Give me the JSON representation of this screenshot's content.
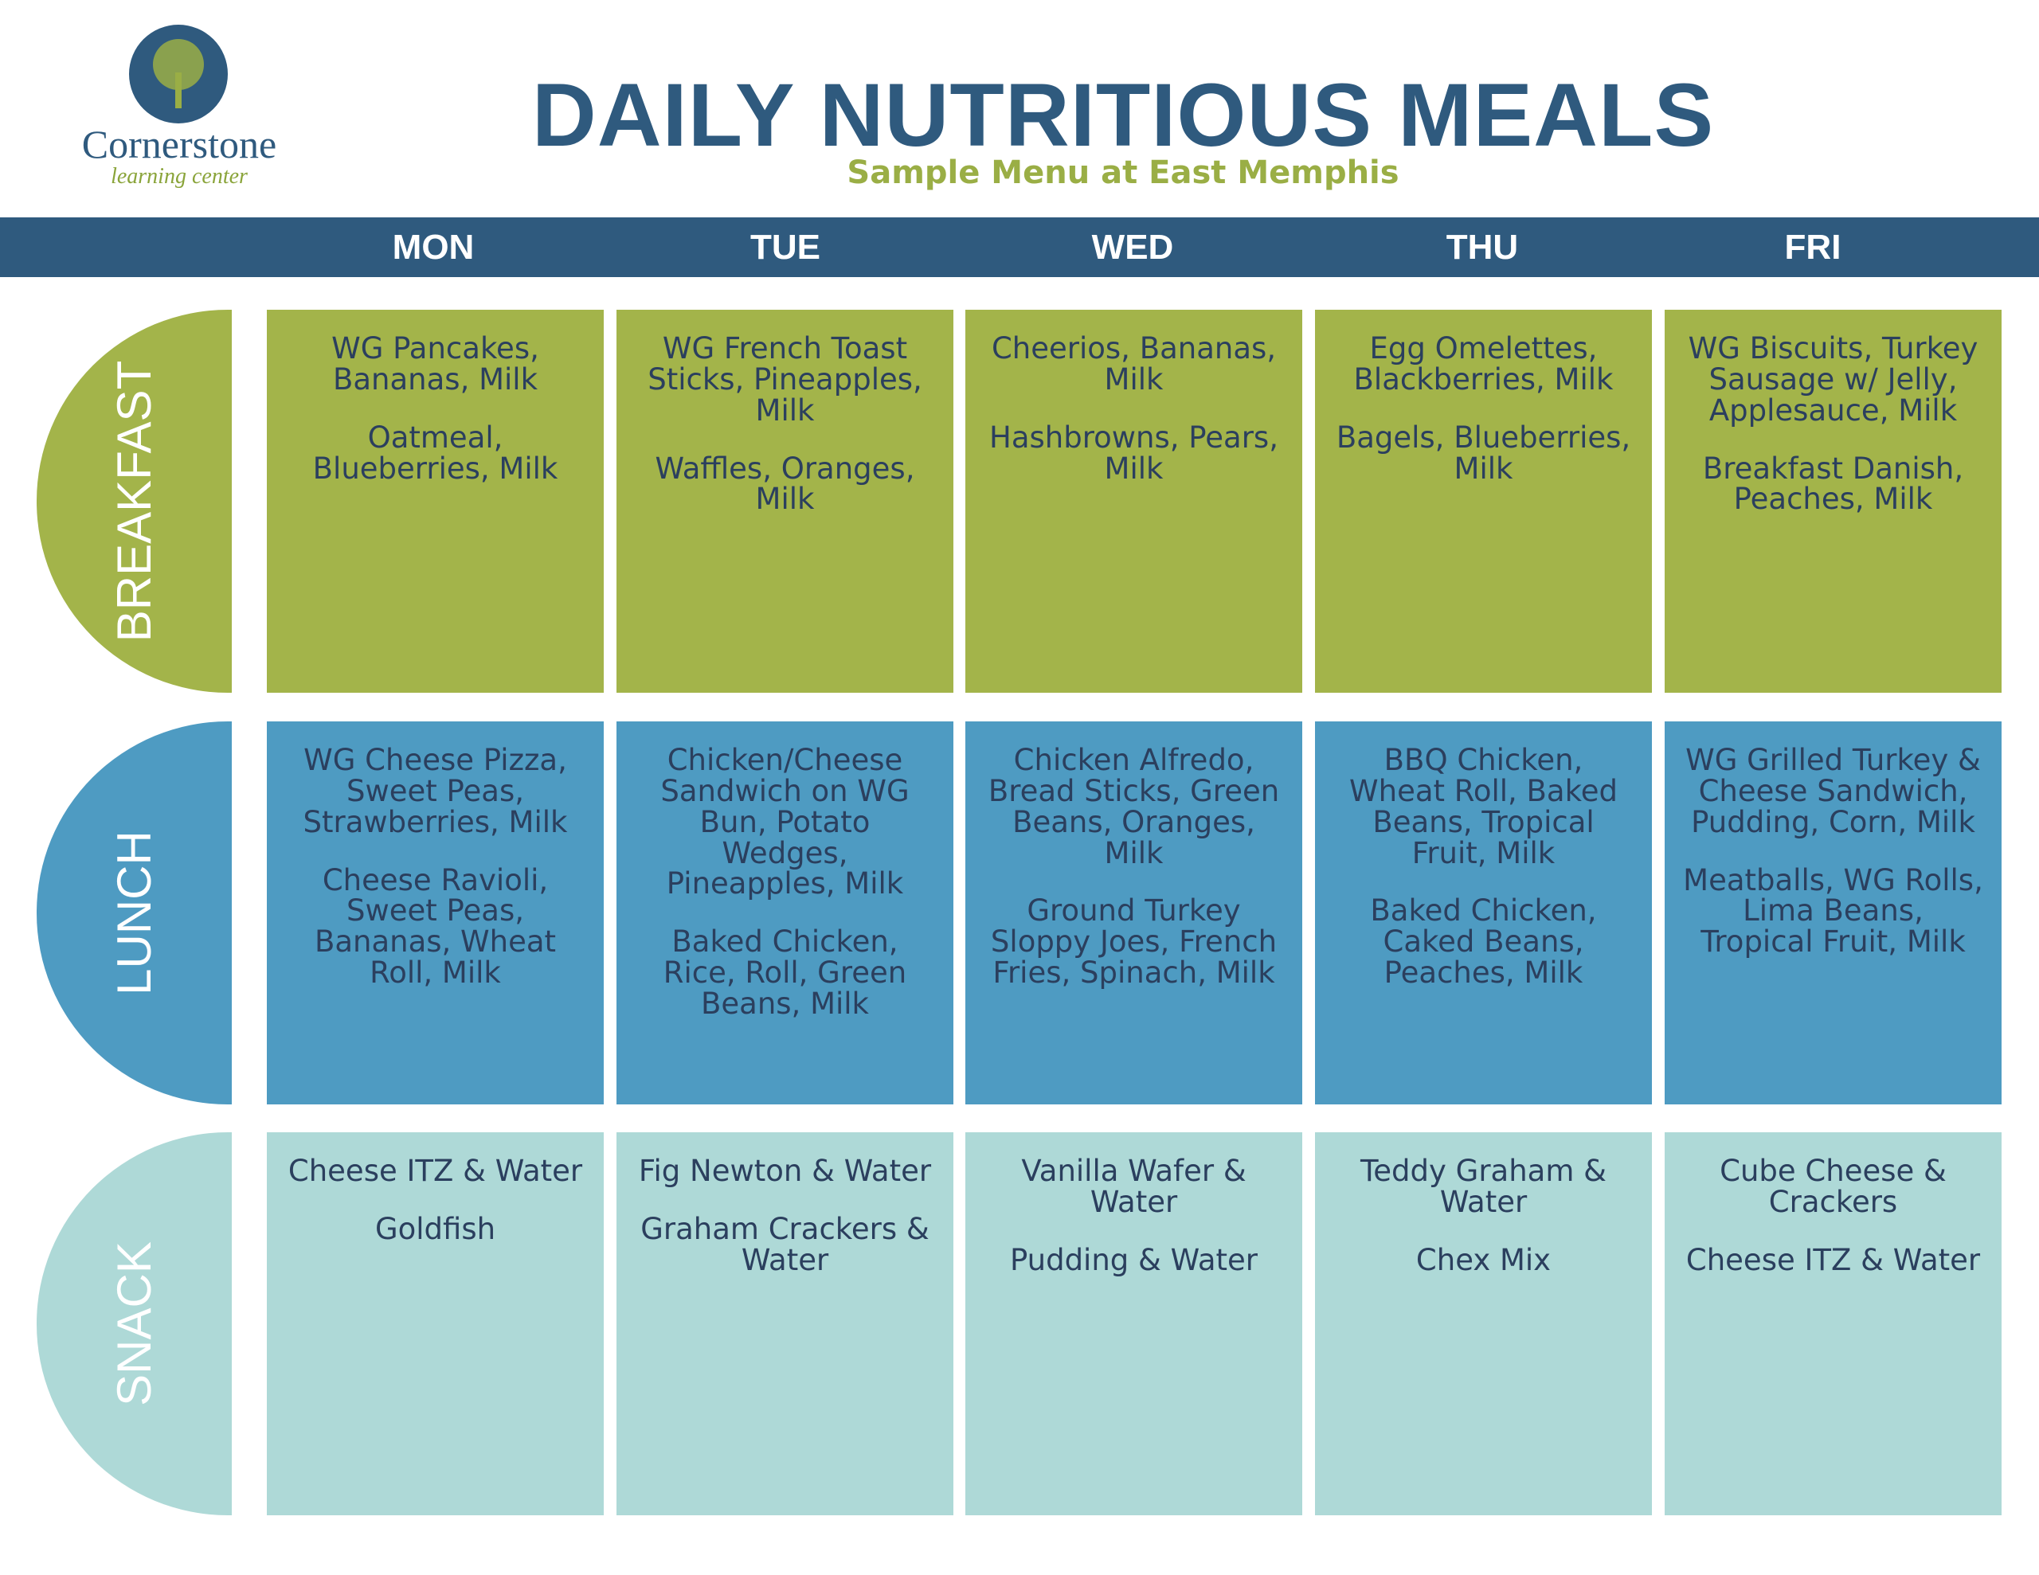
{
  "logo": {
    "name": "Cornerstone",
    "tagline": "learning center"
  },
  "header": {
    "title": "DAILY NUTRITIOUS MEALS",
    "subtitle": "Sample Menu at East Memphis"
  },
  "days": [
    "MON",
    "TUE",
    "WED",
    "THU",
    "FRI"
  ],
  "meals": [
    {
      "label": "BREAKFAST",
      "cells": [
        [
          "WG Pancakes, Bananas, Milk",
          "Oatmeal, Blueberries, Milk"
        ],
        [
          "WG French Toast Sticks, Pineapples, Milk",
          "Waffles, Oranges, Milk"
        ],
        [
          "Cheerios, Bananas, Milk",
          "Hashbrowns, Pears, Milk"
        ],
        [
          "Egg Omelettes, Blackberries, Milk",
          "Bagels, Blueberries, Milk"
        ],
        [
          "WG Biscuits, Turkey Sausage w/ Jelly, Applesauce, Milk",
          "Breakfast Danish, Peaches, Milk"
        ]
      ]
    },
    {
      "label": "LUNCH",
      "cells": [
        [
          "WG Cheese Pizza, Sweet Peas, Strawberries, Milk",
          "Cheese Ravioli, Sweet Peas, Bananas, Wheat Roll, Milk"
        ],
        [
          "Chicken/Cheese Sandwich on WG Bun, Potato Wedges, Pineapples, Milk",
          "Baked Chicken, Rice, Roll, Green Beans, Milk"
        ],
        [
          "Chicken Alfredo, Bread Sticks, Green Beans, Oranges, Milk",
          "Ground Turkey Sloppy Joes, French Fries, Spinach, Milk"
        ],
        [
          "BBQ Chicken, Wheat Roll, Baked Beans, Tropical Fruit, Milk",
          "Baked Chicken, Caked Beans, Peaches, Milk"
        ],
        [
          "WG Grilled Turkey & Cheese Sandwich, Pudding, Corn, Milk",
          "Meatballs, WG Rolls, Lima Beans, Tropical Fruit, Milk"
        ]
      ]
    },
    {
      "label": "SNACK",
      "cells": [
        [
          "Cheese ITZ & Water",
          "Goldfish"
        ],
        [
          "Fig Newton & Water",
          "Graham Crackers & Water"
        ],
        [
          "Vanilla Wafer & Water",
          "Pudding & Water"
        ],
        [
          "Teddy Graham & Water",
          "Chex Mix"
        ],
        [
          "Cube Cheese & Crackers",
          "Cheese ITZ & Water"
        ]
      ]
    }
  ]
}
